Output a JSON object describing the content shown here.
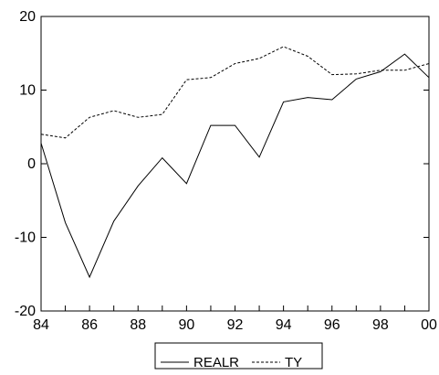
{
  "chart_data": {
    "type": "line",
    "x": [
      1984,
      1985,
      1986,
      1987,
      1988,
      1989,
      1990,
      1991,
      1992,
      1993,
      1994,
      1995,
      1996,
      1997,
      1998,
      1999,
      2000
    ],
    "x_tick_values": [
      1984,
      1986,
      1988,
      1990,
      1992,
      1994,
      1996,
      1998,
      2000
    ],
    "x_tick_labels": [
      "84",
      "86",
      "88",
      "90",
      "92",
      "94",
      "96",
      "98",
      "00"
    ],
    "xlim": [
      1984,
      2000
    ],
    "ylim": [
      -20,
      20
    ],
    "y_ticks": [
      -20,
      -10,
      0,
      10,
      20
    ],
    "y_tick_labels": [
      "-20",
      "-10",
      "0",
      "10",
      "20"
    ],
    "grid": false,
    "legend_position": "bottom-center",
    "series": [
      {
        "name": "REALR",
        "line_style": "solid",
        "color": "#000000",
        "values": [
          2.8,
          -8.0,
          -15.4,
          -7.8,
          -3.0,
          0.8,
          -2.7,
          5.2,
          5.2,
          0.9,
          8.4,
          9.0,
          8.7,
          11.5,
          12.5,
          14.9,
          11.7
        ]
      },
      {
        "name": "TY",
        "line_style": "dashed",
        "color": "#000000",
        "values": [
          4.0,
          3.5,
          6.3,
          7.2,
          6.3,
          6.7,
          11.4,
          11.7,
          13.6,
          14.3,
          15.9,
          14.6,
          12.1,
          12.2,
          12.7,
          12.7,
          13.6
        ]
      }
    ]
  }
}
